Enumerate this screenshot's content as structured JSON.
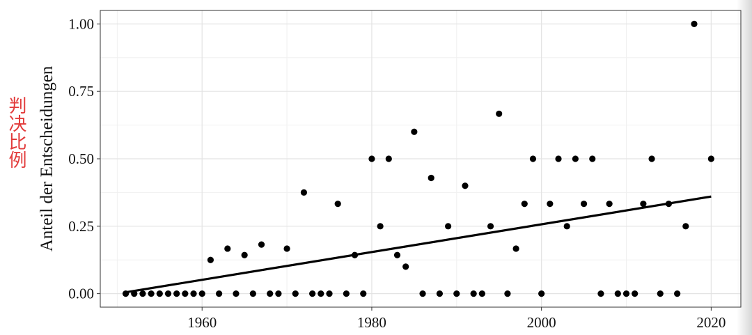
{
  "annotation": {
    "side_label": "判决比例"
  },
  "chart_data": {
    "type": "scatter",
    "title": "",
    "xlabel": "",
    "ylabel": "Anteil der Entscheidungen",
    "xlim": [
      1948,
      2023.5
    ],
    "ylim": [
      -0.05,
      1.05
    ],
    "x_ticks": [
      "1960",
      "1980",
      "2000",
      "2020"
    ],
    "y_ticks": [
      "0.00",
      "0.25",
      "0.50",
      "0.75",
      "1.00"
    ],
    "grid": true,
    "points": [
      [
        1951,
        0
      ],
      [
        1952,
        0
      ],
      [
        1953,
        0
      ],
      [
        1954,
        0
      ],
      [
        1955,
        0
      ],
      [
        1956,
        0
      ],
      [
        1957,
        0
      ],
      [
        1958,
        0
      ],
      [
        1959,
        0
      ],
      [
        1960,
        0
      ],
      [
        1961,
        0.125
      ],
      [
        1962,
        0
      ],
      [
        1963,
        0.167
      ],
      [
        1964,
        0
      ],
      [
        1965,
        0.143
      ],
      [
        1966,
        0
      ],
      [
        1967,
        0.182
      ],
      [
        1968,
        0
      ],
      [
        1969,
        0
      ],
      [
        1970,
        0.167
      ],
      [
        1971,
        0
      ],
      [
        1972,
        0.375
      ],
      [
        1973,
        0
      ],
      [
        1974,
        0
      ],
      [
        1975,
        0
      ],
      [
        1976,
        0.333
      ],
      [
        1977,
        0
      ],
      [
        1978,
        0.143
      ],
      [
        1979,
        0
      ],
      [
        1980,
        0.5
      ],
      [
        1981,
        0.25
      ],
      [
        1982,
        0.5
      ],
      [
        1983,
        0.143
      ],
      [
        1984,
        0.1
      ],
      [
        1985,
        0.6
      ],
      [
        1986,
        0
      ],
      [
        1987,
        0.429
      ],
      [
        1988,
        0
      ],
      [
        1989,
        0.25
      ],
      [
        1990,
        0
      ],
      [
        1991,
        0.4
      ],
      [
        1992,
        0
      ],
      [
        1993,
        0
      ],
      [
        1994,
        0.25
      ],
      [
        1995,
        0.667
      ],
      [
        1996,
        0
      ],
      [
        1997,
        0.167
      ],
      [
        1998,
        0.333
      ],
      [
        1999,
        0.5
      ],
      [
        2000,
        0
      ],
      [
        2001,
        0.333
      ],
      [
        2002,
        0.5
      ],
      [
        2003,
        0.25
      ],
      [
        2004,
        0.5
      ],
      [
        2005,
        0.333
      ],
      [
        2006,
        0.5
      ],
      [
        2007,
        0
      ],
      [
        2008,
        0.333
      ],
      [
        2009,
        0
      ],
      [
        2010,
        0
      ],
      [
        2011,
        0
      ],
      [
        2012,
        0.333
      ],
      [
        2013,
        0.5
      ],
      [
        2014,
        0
      ],
      [
        2015,
        0.333
      ],
      [
        2016,
        0
      ],
      [
        2017,
        0.25
      ],
      [
        2018,
        1
      ],
      [
        2020,
        0.5
      ]
    ],
    "trend_line": {
      "x": [
        1951,
        2020
      ],
      "y": [
        0.005,
        0.36
      ]
    }
  }
}
